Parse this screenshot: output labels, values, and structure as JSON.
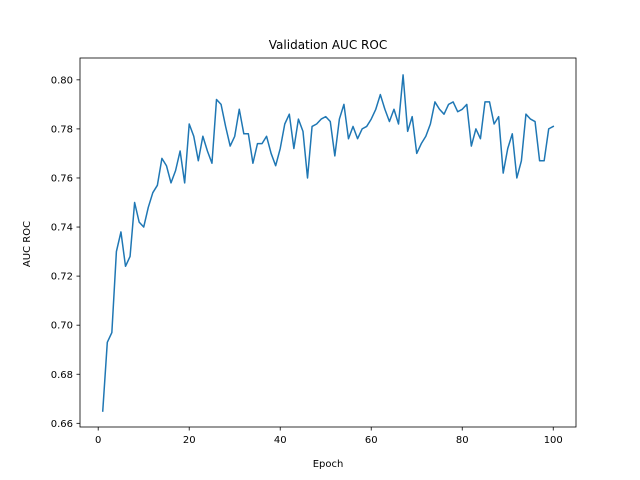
{
  "chart_data": {
    "type": "line",
    "title": "Validation AUC ROC",
    "xlabel": "Epoch",
    "ylabel": "AUC ROC",
    "xlim": [
      -4,
      105
    ],
    "ylim": [
      0.6585,
      0.8089
    ],
    "xticks": [
      0,
      20,
      40,
      60,
      80,
      100
    ],
    "yticks": [
      0.66,
      0.68,
      0.7,
      0.72,
      0.74,
      0.76,
      0.78,
      0.8
    ],
    "xtick_labels": [
      "0",
      "20",
      "40",
      "60",
      "80",
      "100"
    ],
    "ytick_labels": [
      "0.66",
      "0.68",
      "0.70",
      "0.72",
      "0.74",
      "0.76",
      "0.78",
      "0.80"
    ],
    "grid": false,
    "legend": "none",
    "series": [
      {
        "color": "#1f77b4",
        "x": [
          1,
          2,
          3,
          4,
          5,
          6,
          7,
          8,
          9,
          10,
          11,
          12,
          13,
          14,
          15,
          16,
          17,
          18,
          19,
          20,
          21,
          22,
          23,
          24,
          25,
          26,
          27,
          28,
          29,
          30,
          31,
          32,
          33,
          34,
          35,
          36,
          37,
          38,
          39,
          40,
          41,
          42,
          43,
          44,
          45,
          46,
          47,
          48,
          49,
          50,
          51,
          52,
          53,
          54,
          55,
          56,
          57,
          58,
          59,
          60,
          61,
          62,
          63,
          64,
          65,
          66,
          67,
          68,
          69,
          70,
          71,
          72,
          73,
          74,
          75,
          76,
          77,
          78,
          79,
          80,
          81,
          82,
          83,
          84,
          85,
          86,
          87,
          88,
          89,
          90,
          91,
          92,
          93,
          94,
          95,
          96,
          97,
          98,
          99,
          100
        ],
        "values": [
          0.665,
          0.693,
          0.697,
          0.73,
          0.738,
          0.724,
          0.728,
          0.75,
          0.742,
          0.74,
          0.748,
          0.754,
          0.757,
          0.768,
          0.765,
          0.758,
          0.763,
          0.771,
          0.758,
          0.782,
          0.777,
          0.767,
          0.777,
          0.771,
          0.766,
          0.792,
          0.79,
          0.781,
          0.773,
          0.777,
          0.788,
          0.778,
          0.778,
          0.766,
          0.774,
          0.774,
          0.777,
          0.77,
          0.765,
          0.772,
          0.782,
          0.786,
          0.772,
          0.784,
          0.779,
          0.76,
          0.781,
          0.782,
          0.784,
          0.785,
          0.783,
          0.769,
          0.784,
          0.79,
          0.776,
          0.781,
          0.776,
          0.78,
          0.781,
          0.784,
          0.788,
          0.794,
          0.788,
          0.783,
          0.788,
          0.782,
          0.802,
          0.779,
          0.785,
          0.77,
          0.774,
          0.777,
          0.782,
          0.791,
          0.788,
          0.786,
          0.79,
          0.791,
          0.787,
          0.788,
          0.79,
          0.773,
          0.78,
          0.776,
          0.791,
          0.791,
          0.782,
          0.785,
          0.762,
          0.772,
          0.778,
          0.76,
          0.767,
          0.786,
          0.784,
          0.783,
          0.767,
          0.767,
          0.78,
          0.781
        ]
      }
    ]
  }
}
